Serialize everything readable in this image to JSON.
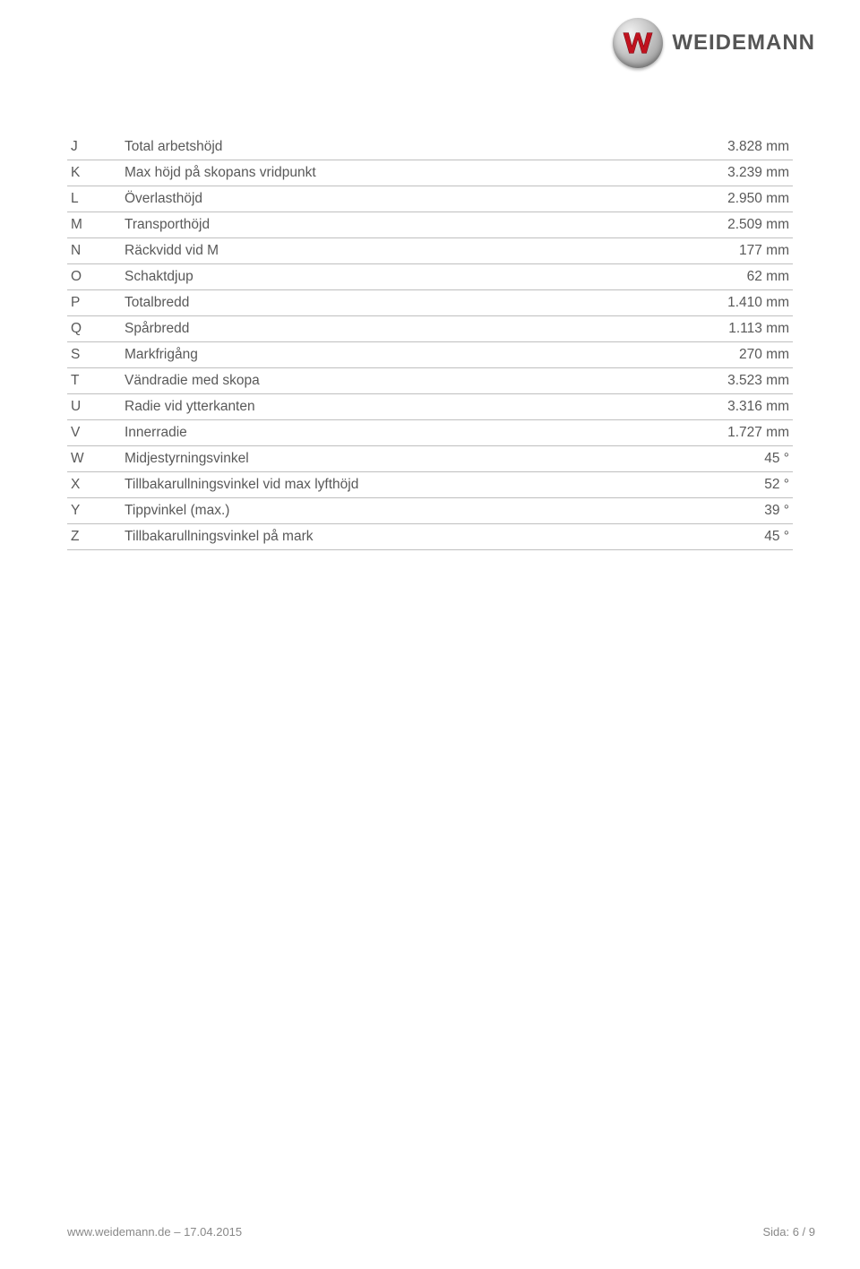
{
  "brand": "WEIDEMANN",
  "table": {
    "border_color": "#bfbfbf",
    "text_color": "#595959",
    "font_size": 15.5,
    "rows": [
      {
        "letter": "J",
        "label": "Total arbetshöjd",
        "value": "3.828 mm"
      },
      {
        "letter": "K",
        "label": "Max höjd på skopans vridpunkt",
        "value": "3.239 mm"
      },
      {
        "letter": "L",
        "label": "Överlasthöjd",
        "value": "2.950 mm"
      },
      {
        "letter": "M",
        "label": "Transporthöjd",
        "value": "2.509 mm"
      },
      {
        "letter": "N",
        "label": "Räckvidd vid M",
        "value": "177 mm"
      },
      {
        "letter": "O",
        "label": "Schaktdjup",
        "value": "62 mm"
      },
      {
        "letter": "P",
        "label": "Totalbredd",
        "value": "1.410 mm"
      },
      {
        "letter": "Q",
        "label": "Spårbredd",
        "value": "1.113 mm"
      },
      {
        "letter": "S",
        "label": "Markfrigång",
        "value": "270 mm"
      },
      {
        "letter": "T",
        "label": "Vändradie med skopa",
        "value": "3.523 mm"
      },
      {
        "letter": "U",
        "label": "Radie vid ytterkanten",
        "value": "3.316 mm"
      },
      {
        "letter": "V",
        "label": "Innerradie",
        "value": "1.727 mm"
      },
      {
        "letter": "W",
        "label": "Midjestyrningsvinkel",
        "value": "45 °"
      },
      {
        "letter": "X",
        "label": "Tillbakarullningsvinkel vid max lyfthöjd",
        "value": "52 °"
      },
      {
        "letter": "Y",
        "label": "Tippvinkel (max.)",
        "value": "39 °"
      },
      {
        "letter": "Z",
        "label": "Tillbakarullningsvinkel på mark",
        "value": "45 °"
      }
    ]
  },
  "footer": {
    "left": "www.weidemann.de – 17.04.2015",
    "right": "Sida: 6 / 9"
  },
  "colors": {
    "page_bg": "#ffffff",
    "brand_text": "#555555",
    "footer_text": "#888888",
    "logo_red": "#c1121f"
  }
}
